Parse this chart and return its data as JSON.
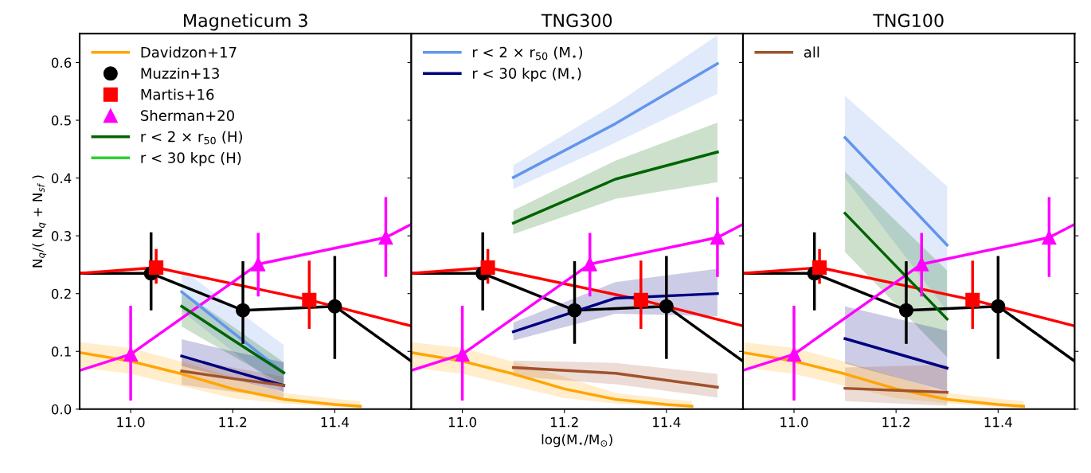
{
  "chart_data": [
    {
      "type": "line",
      "title": "Magneticum 3",
      "ylabel": "N$_{q}$/( N$_{q}$ + N$_{sf}$ )",
      "xlim": [
        10.9,
        11.55
      ],
      "ylim": [
        0,
        0.65
      ],
      "xticks": [
        {
          "value": 11,
          "label": "11.0"
        },
        {
          "value": 11.2,
          "label": "11.2"
        },
        {
          "value": 11.4,
          "label": "11.4"
        }
      ],
      "yticks": [
        {
          "value": 0,
          "label": "0.0"
        },
        0.1,
        0.2,
        0.3,
        0.4,
        0.5,
        0.6
      ],
      "legend": "top left",
      "grid": false,
      "series": [
        {
          "name": "Davidzon+17",
          "color": "#ffa500",
          "x": [
            10.9,
            11.0,
            11.1,
            11.2,
            11.3,
            11.4,
            11.45
          ],
          "values": [
            0.098,
            0.083,
            0.061,
            0.035,
            0.017,
            0.008,
            0.005
          ],
          "lower": [
            0.072,
            0.061,
            0.04,
            0.019,
            0.01,
            0.004,
            0.002
          ],
          "upper": [
            0.116,
            0.106,
            0.082,
            0.056,
            0.028,
            0.018,
            0.014
          ]
        },
        {
          "color": "#000000",
          "x": [
            10.9,
            11.04,
            11.22,
            11.4,
            11.55
          ],
          "values": [
            0.235,
            0.235,
            0.171,
            0.178,
            0.083
          ]
        },
        {
          "color": "#ff0000",
          "x": [
            10.9,
            11.05,
            11.35,
            11.55
          ],
          "values": [
            0.235,
            0.245,
            0.189,
            0.144
          ]
        },
        {
          "color": "#ff00ff",
          "x": [
            10.9,
            11.0,
            11.25,
            11.5,
            11.55
          ],
          "values": [
            0.067,
            0.095,
            0.251,
            0.297,
            0.32
          ]
        },
        {
          "type": "scatter",
          "name": "Muzzin+13",
          "color": "#000000",
          "marker": "circle",
          "x": [
            11.04,
            11.22,
            11.4
          ],
          "values": [
            0.235,
            0.171,
            0.178
          ],
          "errors": [
            [
              0.171,
              0.306
            ],
            [
              0.113,
              0.256
            ],
            [
              0.087,
              0.265
            ]
          ]
        },
        {
          "type": "scatter",
          "name": "Martis+16",
          "color": "#ff0000",
          "marker": "square",
          "x": [
            11.05,
            11.35
          ],
          "values": [
            0.245,
            0.189
          ],
          "errors": [
            [
              0.217,
              0.277
            ],
            [
              0.139,
              0.257
            ]
          ]
        },
        {
          "type": "scatter",
          "name": "Sherman+20",
          "color": "#ff00ff",
          "marker": "triangle",
          "x": [
            11.0,
            11.25,
            11.5
          ],
          "values": [
            0.095,
            0.251,
            0.297
          ],
          "errors": [
            [
              0.015,
              0.179
            ],
            [
              0.195,
              0.305
            ],
            [
              0.229,
              0.367
            ]
          ]
        },
        {
          "color": "#6495ed",
          "x": [
            11.1,
            11.2,
            11.3
          ],
          "values": [
            0.203,
            0.133,
            0.063
          ],
          "lower": [
            0.17,
            0.1,
            0.03
          ],
          "upper": [
            0.242,
            0.177,
            0.111
          ]
        },
        {
          "name": "r < 2 × r$_{50}$ (H)",
          "color": "#006400",
          "x": [
            11.1,
            11.2,
            11.3
          ],
          "values": [
            0.178,
            0.12,
            0.063
          ],
          "lower": [
            0.143,
            0.092,
            0.042
          ],
          "upper": [
            0.205,
            0.143,
            0.081
          ]
        },
        {
          "name": "r < 30 kpc (H)",
          "color": "#32cd32"
        },
        {
          "color": "#000080",
          "x": [
            11.1,
            11.2,
            11.3
          ],
          "values": [
            0.092,
            0.066,
            0.041
          ],
          "lower": [
            0.075,
            0.052,
            0.03
          ],
          "upper": [
            0.121,
            0.1,
            0.081
          ]
        },
        {
          "color": "#a0522d",
          "x": [
            11.1,
            11.2,
            11.3
          ],
          "values": [
            0.066,
            0.053,
            0.041
          ],
          "lower": [
            0.042,
            0.03,
            0.019
          ],
          "upper": [
            0.088,
            0.072,
            0.056
          ]
        }
      ]
    },
    {
      "type": "line",
      "title": "TNG300",
      "xlabel": "log(M$_{⋆}$/M$_{⊙}$)",
      "xlim": [
        10.9,
        11.55
      ],
      "ylim": [
        0,
        0.65
      ],
      "xticks": [
        {
          "value": 11,
          "label": "11.0"
        },
        {
          "value": 11.2,
          "label": "11.2"
        },
        {
          "value": 11.4,
          "label": "11.4"
        }
      ],
      "yticks": [
        0,
        0.1,
        0.2,
        0.3,
        0.4,
        0.5,
        0.6
      ],
      "tick_labels": "x",
      "legend": "top left",
      "grid": false,
      "series": [
        {
          "color": "#ffa500",
          "x": [
            10.9,
            11.0,
            11.1,
            11.2,
            11.3,
            11.4,
            11.45
          ],
          "values": [
            0.098,
            0.083,
            0.061,
            0.035,
            0.017,
            0.008,
            0.005
          ],
          "lower": [
            0.072,
            0.061,
            0.04,
            0.019,
            0.01,
            0.004,
            0.002
          ],
          "upper": [
            0.116,
            0.106,
            0.082,
            0.056,
            0.028,
            0.018,
            0.014
          ]
        },
        {
          "color": "#000000",
          "x": [
            10.9,
            11.04,
            11.22,
            11.4,
            11.55
          ],
          "values": [
            0.235,
            0.235,
            0.171,
            0.178,
            0.083
          ]
        },
        {
          "color": "#ff0000",
          "x": [
            10.9,
            11.05,
            11.35,
            11.55
          ],
          "values": [
            0.235,
            0.245,
            0.189,
            0.144
          ]
        },
        {
          "color": "#ff00ff",
          "x": [
            10.9,
            11.0,
            11.25,
            11.5,
            11.55
          ],
          "values": [
            0.067,
            0.095,
            0.251,
            0.297,
            0.32
          ]
        },
        {
          "name": "r < 2 × r$_{50}$ (M$_{⋆}$)",
          "color": "#6495ed",
          "x": [
            11.1,
            11.3,
            11.5
          ],
          "values": [
            0.401,
            0.494,
            0.598
          ],
          "lower": [
            0.381,
            0.461,
            0.546
          ],
          "upper": [
            0.422,
            0.528,
            0.647
          ]
        },
        {
          "color": "#006400",
          "x": [
            11.1,
            11.3,
            11.5
          ],
          "values": [
            0.322,
            0.398,
            0.445
          ],
          "lower": [
            0.303,
            0.364,
            0.393
          ],
          "upper": [
            0.344,
            0.43,
            0.496
          ]
        },
        {
          "name": "r < 30 kpc (M$_{⋆}$)",
          "color": "#000080",
          "x": [
            11.1,
            11.3,
            11.5
          ],
          "values": [
            0.134,
            0.192,
            0.2
          ],
          "lower": [
            0.119,
            0.165,
            0.161
          ],
          "upper": [
            0.15,
            0.22,
            0.243
          ]
        },
        {
          "color": "#a0522d",
          "x": [
            11.1,
            11.3,
            11.5
          ],
          "values": [
            0.072,
            0.062,
            0.038
          ],
          "lower": [
            0.057,
            0.043,
            0.02
          ],
          "upper": [
            0.084,
            0.08,
            0.061
          ]
        },
        {
          "type": "scatter",
          "color": "#000000",
          "marker": "circle",
          "x": [
            11.04,
            11.22,
            11.4
          ],
          "values": [
            0.235,
            0.171,
            0.178
          ],
          "errors": [
            [
              0.171,
              0.306
            ],
            [
              0.113,
              0.256
            ],
            [
              0.087,
              0.265
            ]
          ]
        },
        {
          "type": "scatter",
          "color": "#ff0000",
          "marker": "square",
          "x": [
            11.05,
            11.35
          ],
          "values": [
            0.245,
            0.189
          ],
          "errors": [
            [
              0.217,
              0.277
            ],
            [
              0.139,
              0.257
            ]
          ]
        },
        {
          "type": "scatter",
          "color": "#ff00ff",
          "marker": "triangle",
          "x": [
            11.0,
            11.25,
            11.5
          ],
          "values": [
            0.095,
            0.251,
            0.297
          ],
          "errors": [
            [
              0.015,
              0.179
            ],
            [
              0.195,
              0.305
            ],
            [
              0.229,
              0.367
            ]
          ]
        }
      ]
    },
    {
      "type": "line",
      "title": "TNG100",
      "xlim": [
        10.9,
        11.55
      ],
      "ylim": [
        0,
        0.65
      ],
      "xticks": [
        {
          "value": 11,
          "label": "11.0"
        },
        {
          "value": 11.2,
          "label": "11.2"
        },
        {
          "value": 11.4,
          "label": "11.4"
        }
      ],
      "yticks": [
        0,
        0.1,
        0.2,
        0.3,
        0.4,
        0.5,
        0.6
      ],
      "tick_labels": "x",
      "legend": "top left",
      "grid": false,
      "series": [
        {
          "color": "#ffa500",
          "x": [
            10.9,
            11.0,
            11.1,
            11.2,
            11.3,
            11.4,
            11.45
          ],
          "values": [
            0.098,
            0.083,
            0.061,
            0.035,
            0.017,
            0.008,
            0.005
          ],
          "lower": [
            0.072,
            0.061,
            0.04,
            0.019,
            0.01,
            0.004,
            0.002
          ],
          "upper": [
            0.116,
            0.106,
            0.082,
            0.056,
            0.028,
            0.018,
            0.014
          ]
        },
        {
          "color": "#000000",
          "x": [
            10.9,
            11.04,
            11.22,
            11.4,
            11.55
          ],
          "values": [
            0.235,
            0.235,
            0.171,
            0.178,
            0.083
          ]
        },
        {
          "color": "#ff0000",
          "x": [
            10.9,
            11.05,
            11.35,
            11.55
          ],
          "values": [
            0.235,
            0.245,
            0.189,
            0.144
          ]
        },
        {
          "color": "#ff00ff",
          "x": [
            10.9,
            11.0,
            11.25,
            11.5,
            11.55
          ],
          "values": [
            0.067,
            0.095,
            0.251,
            0.297,
            0.32
          ]
        },
        {
          "color": "#6495ed",
          "x": [
            11.1,
            11.3
          ],
          "values": [
            0.47,
            0.284
          ],
          "lower": [
            0.4,
            0.17
          ],
          "upper": [
            0.542,
            0.386
          ]
        },
        {
          "color": "#006400",
          "x": [
            11.1,
            11.3
          ],
          "values": [
            0.339,
            0.156
          ],
          "lower": [
            0.272,
            0.09
          ],
          "upper": [
            0.411,
            0.24
          ]
        },
        {
          "color": "#000080",
          "x": [
            11.1,
            11.3
          ],
          "values": [
            0.122,
            0.071
          ],
          "lower": [
            0.079,
            0.031
          ],
          "upper": [
            0.178,
            0.136
          ]
        },
        {
          "name": "all",
          "color": "#a0522d",
          "x": [
            11.1,
            11.3
          ],
          "values": [
            0.036,
            0.029
          ],
          "lower": [
            0.014,
            0.006
          ],
          "upper": [
            0.072,
            0.077
          ]
        },
        {
          "type": "scatter",
          "color": "#000000",
          "marker": "circle",
          "x": [
            11.04,
            11.22,
            11.4
          ],
          "values": [
            0.235,
            0.171,
            0.178
          ],
          "errors": [
            [
              0.171,
              0.306
            ],
            [
              0.113,
              0.256
            ],
            [
              0.087,
              0.265
            ]
          ]
        },
        {
          "type": "scatter",
          "color": "#ff0000",
          "marker": "square",
          "x": [
            11.05,
            11.35
          ],
          "values": [
            0.245,
            0.189
          ],
          "errors": [
            [
              0.217,
              0.277
            ],
            [
              0.139,
              0.257
            ]
          ]
        },
        {
          "type": "scatter",
          "color": "#ff00ff",
          "marker": "triangle",
          "x": [
            11.0,
            11.25,
            11.5
          ],
          "values": [
            0.095,
            0.251,
            0.297
          ],
          "errors": [
            [
              0.015,
              0.179
            ],
            [
              0.195,
              0.305
            ],
            [
              0.229,
              0.367
            ]
          ]
        }
      ]
    }
  ]
}
